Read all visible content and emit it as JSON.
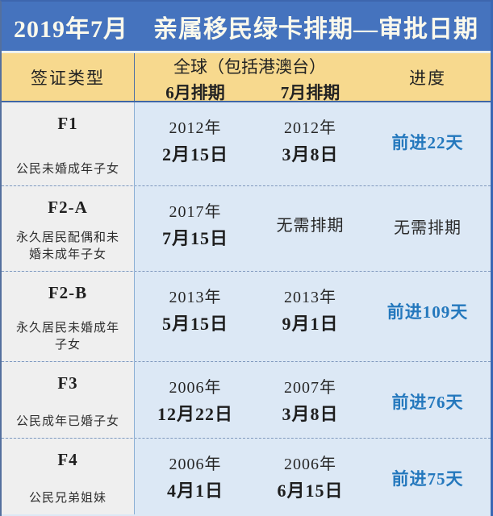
{
  "title": "2019年7月　亲属移民绿卡排期—审批日期",
  "colors": {
    "title_bar_bg": "#4573BE",
    "title_text": "#FBF9EC",
    "header_row_bg": "#F7D98E",
    "visa_column_bg": "#EFEFEF",
    "data_cell_bg": "#DCE8F5",
    "progress_blue": "#2478BD",
    "header_underline": "#3F66A6",
    "dashed_separator": "#8099BE"
  },
  "table": {
    "headers": {
      "visa_type": "签证类型",
      "region_group": "全球（包括港澳台）",
      "june": "6月排期",
      "july": "7月排期",
      "progress": "进度"
    },
    "rows": [
      {
        "code": "F1",
        "desc": "公民未婚成年子女",
        "june_line1": "2012年",
        "june_line2": "2月15日",
        "july_line1": "2012年",
        "july_line2": "3月8日",
        "progress": "前进22天",
        "progress_type": "advance"
      },
      {
        "code": "F2-A",
        "desc": "永久居民配偶和未婚未成年子女",
        "june_line1": "2017年",
        "june_line2": "7月15日",
        "july_line1": "无需排期",
        "july_line2": "",
        "progress": "无需排期",
        "progress_type": "none"
      },
      {
        "code": "F2-B",
        "desc": "永久居民未婚成年子女",
        "june_line1": "2013年",
        "june_line2": "5月15日",
        "july_line1": "2013年",
        "july_line2": "9月1日",
        "progress": "前进109天",
        "progress_type": "advance"
      },
      {
        "code": "F3",
        "desc": "公民成年已婚子女",
        "june_line1": "2006年",
        "june_line2": "12月22日",
        "july_line1": "2007年",
        "july_line2": "3月8日",
        "progress": "前进76天",
        "progress_type": "advance"
      },
      {
        "code": "F4",
        "desc": "公民兄弟姐妹",
        "june_line1": "2006年",
        "june_line2": "4月1日",
        "july_line1": "2006年",
        "july_line2": "6月15日",
        "progress": "前进75天",
        "progress_type": "advance"
      }
    ]
  },
  "chart_data": {
    "type": "table",
    "title": "2019年7月 亲属移民绿卡排期—审批日期",
    "column_group_header": "全球（包括港澳台）",
    "columns": [
      "签证类型",
      "6月排期",
      "7月排期",
      "进度"
    ],
    "rows": [
      [
        "F1 公民未婚成年子女",
        "2012年2月15日",
        "2012年3月8日",
        "前进22天"
      ],
      [
        "F2-A 永久居民配偶和未婚未成年子女",
        "2017年7月15日",
        "无需排期",
        "无需排期"
      ],
      [
        "F2-B 永久居民未婚成年子女",
        "2013年5月15日",
        "2013年9月1日",
        "前进109天"
      ],
      [
        "F3 公民成年已婚子女",
        "2006年12月22日",
        "2007年3月8日",
        "前进76天"
      ],
      [
        "F4 公民兄弟姐妹",
        "2006年4月1日",
        "2006年6月15日",
        "前进75天"
      ]
    ]
  }
}
